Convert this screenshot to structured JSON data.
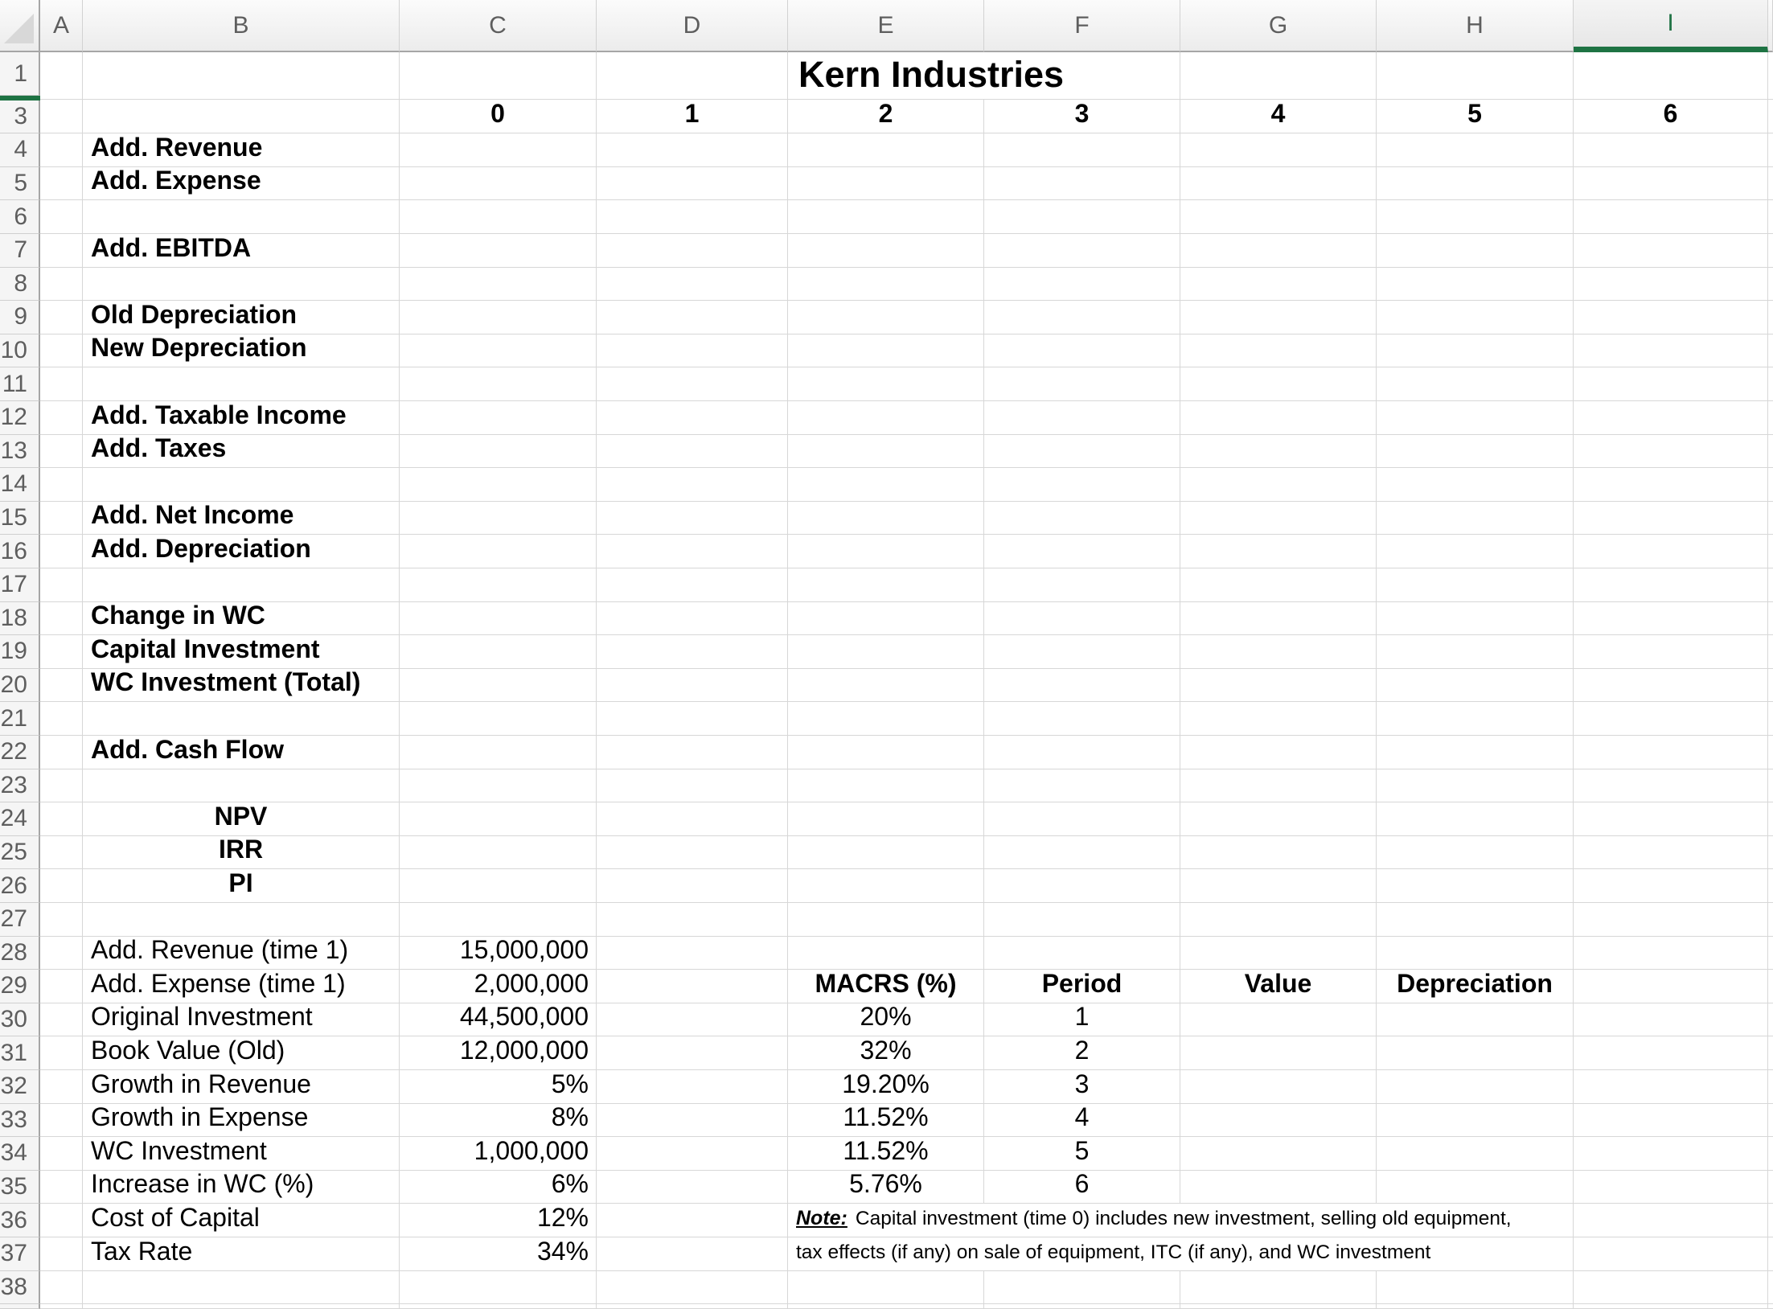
{
  "title": "Kern Industries",
  "column_headers": [
    "A",
    "B",
    "C",
    "D",
    "E",
    "F",
    "G",
    "H",
    "I"
  ],
  "selected_column_header": "I",
  "row_headers": [
    "1",
    "3",
    "4",
    "5",
    "6",
    "7",
    "8",
    "9",
    "10",
    "11",
    "12",
    "13",
    "14",
    "15",
    "16",
    "17",
    "18",
    "19",
    "20",
    "21",
    "22",
    "23",
    "24",
    "25",
    "26",
    "27",
    "28",
    "29",
    "30",
    "31",
    "32",
    "33",
    "34",
    "35",
    "36",
    "37",
    "38"
  ],
  "timeline": {
    "row": 3,
    "values": [
      "0",
      "1",
      "2",
      "3",
      "4",
      "5",
      "6"
    ]
  },
  "line_items": [
    {
      "row": 4,
      "label": "Add. Revenue"
    },
    {
      "row": 5,
      "label": "Add. Expense"
    },
    {
      "row": 7,
      "label": "Add. EBITDA"
    },
    {
      "row": 9,
      "label": "Old Depreciation"
    },
    {
      "row": 10,
      "label": "New Depreciation"
    },
    {
      "row": 12,
      "label": "Add. Taxable Income"
    },
    {
      "row": 13,
      "label": "Add. Taxes"
    },
    {
      "row": 15,
      "label": "Add. Net Income"
    },
    {
      "row": 16,
      "label": "Add. Depreciation"
    },
    {
      "row": 18,
      "label": "Change in WC"
    },
    {
      "row": 19,
      "label": "Capital Investment"
    },
    {
      "row": 20,
      "label": "WC Investment (Total)"
    },
    {
      "row": 22,
      "label": "Add. Cash Flow"
    }
  ],
  "metrics": [
    {
      "row": 24,
      "label": "NPV"
    },
    {
      "row": 25,
      "label": "IRR"
    },
    {
      "row": 26,
      "label": "PI"
    }
  ],
  "assumptions": [
    {
      "row": 28,
      "label": "Add. Revenue (time 1)",
      "value": "15,000,000"
    },
    {
      "row": 29,
      "label": "Add. Expense (time 1)",
      "value": "2,000,000"
    },
    {
      "row": 30,
      "label": "Original Investment",
      "value": "44,500,000"
    },
    {
      "row": 31,
      "label": "Book Value (Old)",
      "value": "12,000,000"
    },
    {
      "row": 32,
      "label": "Growth in Revenue",
      "value": "5%"
    },
    {
      "row": 33,
      "label": "Growth in Expense",
      "value": "8%"
    },
    {
      "row": 34,
      "label": "WC Investment",
      "value": "1,000,000"
    },
    {
      "row": 35,
      "label": "Increase in WC (%)",
      "value": "6%"
    },
    {
      "row": 36,
      "label": "Cost of Capital",
      "value": "12%"
    },
    {
      "row": 37,
      "label": "Tax Rate",
      "value": "34%"
    }
  ],
  "macrs_table": {
    "header_row": 29,
    "headers": {
      "macrs": "MACRS (%)",
      "period": "Period",
      "value": "Value",
      "depreciation": "Depreciation"
    },
    "rows": [
      {
        "macrs": "20%",
        "period": "1"
      },
      {
        "macrs": "32%",
        "period": "2"
      },
      {
        "macrs": "19.20%",
        "period": "3"
      },
      {
        "macrs": "11.52%",
        "period": "4"
      },
      {
        "macrs": "11.52%",
        "period": "5"
      },
      {
        "macrs": "5.76%",
        "period": "6"
      }
    ]
  },
  "note": {
    "label": "Note:",
    "line1": "Capital investment (time 0) includes new investment, selling old equipment,",
    "line2": "tax effects (if any) on sale of equipment, ITC (if any), and WC investment"
  },
  "colors": {
    "accent_green": "#1e7343",
    "selected_header_text": "#217346"
  }
}
